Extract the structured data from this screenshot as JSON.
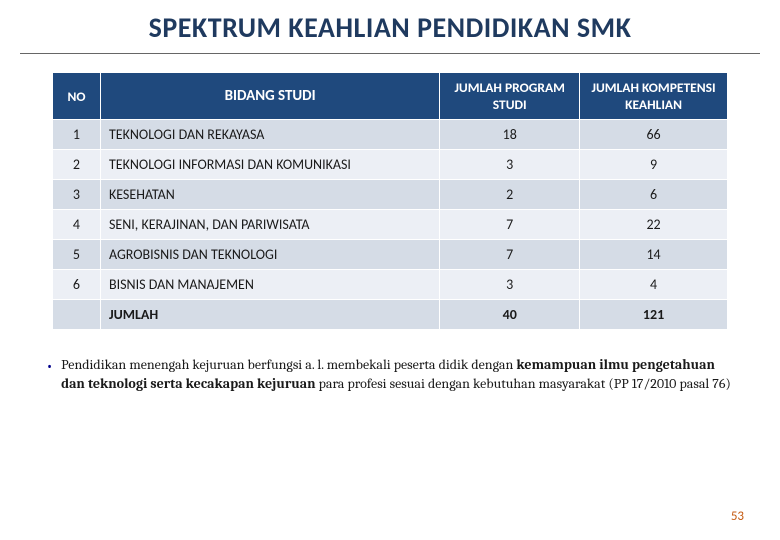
{
  "title": "SPEKTRUM KEAHLIAN PENDIDIKAN SMK",
  "table": {
    "headers": {
      "no": "NO",
      "bidang": "BIDANG STUDI",
      "program": "JUMLAH PROGRAM STUDI",
      "kompetensi": "JUMLAH KOMPETENSI KEAHLIAN"
    },
    "rows": [
      {
        "no": "1",
        "bidang": "TEKNOLOGI DAN REKAYASA",
        "program": "18",
        "kompetensi": "66"
      },
      {
        "no": "2",
        "bidang": "TEKNOLOGI INFORMASI DAN KOMUNIKASI",
        "program": "3",
        "kompetensi": "9"
      },
      {
        "no": "3",
        "bidang": "KESEHATAN",
        "program": "2",
        "kompetensi": "6"
      },
      {
        "no": "4",
        "bidang": "SENI, KERAJINAN, DAN PARIWISATA",
        "program": "7",
        "kompetensi": "22"
      },
      {
        "no": "5",
        "bidang": "AGROBISNIS DAN TEKNOLOGI",
        "program": "7",
        "kompetensi": "14"
      },
      {
        "no": "6",
        "bidang": "BISNIS DAN MANAJEMEN",
        "program": "3",
        "kompetensi": "4"
      }
    ],
    "total": {
      "label": "JUMLAH",
      "program": "40",
      "kompetensi": "121"
    },
    "header_bg": "#1f497d",
    "header_text": "#ffffff",
    "row_odd_bg": "#d5dce6",
    "row_even_bg": "#eceff5",
    "border_color": "#ffffff"
  },
  "bullet": {
    "marker": "•",
    "plain1": "Pendidikan menengah kejuruan berfungsi  a. l.  membekali peserta didik dengan ",
    "bold1": "kemampuan ilmu pengetahuan dan teknologi serta kecakapan kejuruan",
    "plain2": " para profesi sesuai dengan kebutuhan masyarakat (PP 17/2010 pasal 76)"
  },
  "page_number": "53",
  "colors": {
    "title": "#1f3a5f",
    "page_num": "#c55a11",
    "bullet_marker": "#00008b"
  }
}
